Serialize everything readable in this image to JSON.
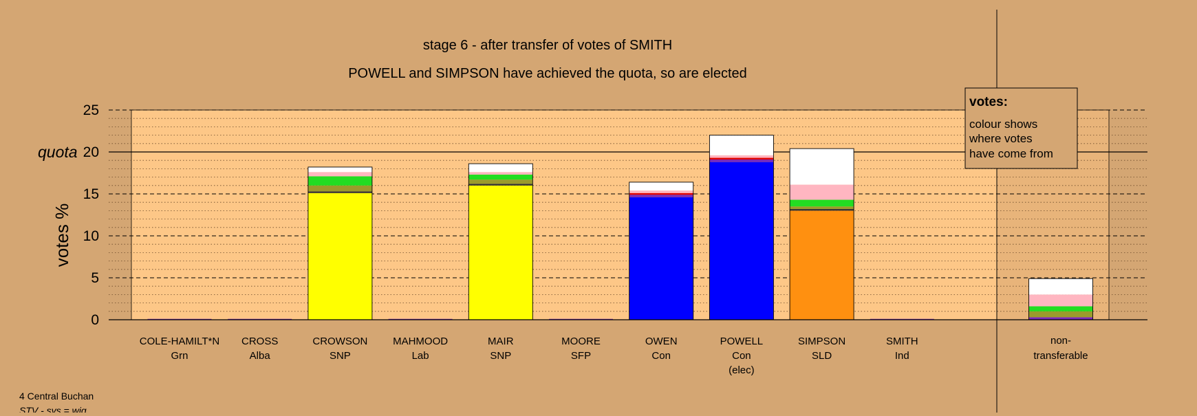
{
  "chart_data": {
    "type": "bar",
    "title": "stage 6 - after transfer of votes of SMITH",
    "subtitle": "POWELL and SIMPSON have achieved the quota, so are elected",
    "ylabel": "votes %",
    "ylim": [
      0,
      25
    ],
    "yticks": [
      0,
      5,
      10,
      15,
      20,
      25
    ],
    "quota": 20,
    "quota_label": "quota",
    "grid": true,
    "colors": {
      "background": "#d4a673",
      "plot_background": "#fdc787",
      "nontransferable_shade": "#e8b47a",
      "SNP": "#ffff00",
      "Con": "#0000ff",
      "SLD": "#ff9010",
      "Grn": "#22dd22",
      "Alba": "#9b9b2c",
      "Lab": "#e00000",
      "SFP": "#7a2ab8",
      "Ind": "#ffb6c1",
      "later_transfers": "#ffffff"
    },
    "candidates": [
      {
        "name": "COLE-HAMILT*N",
        "party": "Grn",
        "note": "",
        "total": 0,
        "segments": []
      },
      {
        "name": "CROSS",
        "party": "Alba",
        "note": "",
        "total": 0,
        "segments": []
      },
      {
        "name": "CROWSON",
        "party": "SNP",
        "note": "",
        "total": 18.2,
        "segments": [
          {
            "color": "#ffff00",
            "value": 15.1
          },
          {
            "color": "#333333",
            "value": 0.2
          },
          {
            "color": "#9b9b2c",
            "value": 0.7
          },
          {
            "color": "#22dd22",
            "value": 1.1
          },
          {
            "color": "#ffb6c1",
            "value": 0.5
          },
          {
            "color": "#ffffff",
            "value": 0.6
          }
        ]
      },
      {
        "name": "MAHMOOD",
        "party": "Lab",
        "note": "",
        "total": 0,
        "segments": []
      },
      {
        "name": "MAIR",
        "party": "SNP",
        "note": "",
        "total": 18.6,
        "segments": [
          {
            "color": "#ffff00",
            "value": 16.0
          },
          {
            "color": "#333333",
            "value": 0.2
          },
          {
            "color": "#9b9b2c",
            "value": 0.5
          },
          {
            "color": "#22dd22",
            "value": 0.6
          },
          {
            "color": "#ffb6c1",
            "value": 0.3
          },
          {
            "color": "#ffffff",
            "value": 1.0
          }
        ]
      },
      {
        "name": "MOORE",
        "party": "SFP",
        "note": "",
        "total": 0,
        "segments": []
      },
      {
        "name": "OWEN",
        "party": "Con",
        "note": "",
        "total": 16.4,
        "segments": [
          {
            "color": "#0000ff",
            "value": 14.6
          },
          {
            "color": "#7a2ab8",
            "value": 0.3
          },
          {
            "color": "#e00000",
            "value": 0.2
          },
          {
            "color": "#ffb6c1",
            "value": 0.3
          },
          {
            "color": "#ffffff",
            "value": 1.0
          }
        ]
      },
      {
        "name": "POWELL",
        "party": "Con",
        "note": "(elec)",
        "total": 22.0,
        "segments": [
          {
            "color": "#0000ff",
            "value": 18.8
          },
          {
            "color": "#7a2ab8",
            "value": 0.3
          },
          {
            "color": "#e00000",
            "value": 0.2
          },
          {
            "color": "#ffb6c1",
            "value": 0.3
          },
          {
            "color": "#ffffff",
            "value": 2.4
          }
        ]
      },
      {
        "name": "SIMPSON",
        "party": "SLD",
        "note": "",
        "total": 20.4,
        "segments": [
          {
            "color": "#ff9010",
            "value": 13.0
          },
          {
            "color": "#333333",
            "value": 0.2
          },
          {
            "color": "#9b9b2c",
            "value": 0.3
          },
          {
            "color": "#22dd22",
            "value": 0.8
          },
          {
            "color": "#ffb6c1",
            "value": 1.8
          },
          {
            "color": "#ffffff",
            "value": 4.3
          }
        ]
      },
      {
        "name": "SMITH",
        "party": "Ind",
        "note": "",
        "total": 0,
        "segments": []
      }
    ],
    "nontransferable": {
      "name": "non-",
      "party": "transferable",
      "total": 4.9,
      "segments": [
        {
          "color": "#7a2ab8",
          "value": 0.3
        },
        {
          "color": "#9b9b2c",
          "value": 0.7
        },
        {
          "color": "#22dd22",
          "value": 0.6
        },
        {
          "color": "#ffb6c1",
          "value": 1.4
        },
        {
          "color": "#ffffff",
          "value": 1.9
        }
      ]
    },
    "legend": {
      "placement": "top-right",
      "title": "votes:",
      "lines": [
        "colour shows",
        "where votes",
        "have come from"
      ]
    }
  },
  "footer": {
    "ward": "4 Central Buchan",
    "system": "STV - sys = wig"
  }
}
